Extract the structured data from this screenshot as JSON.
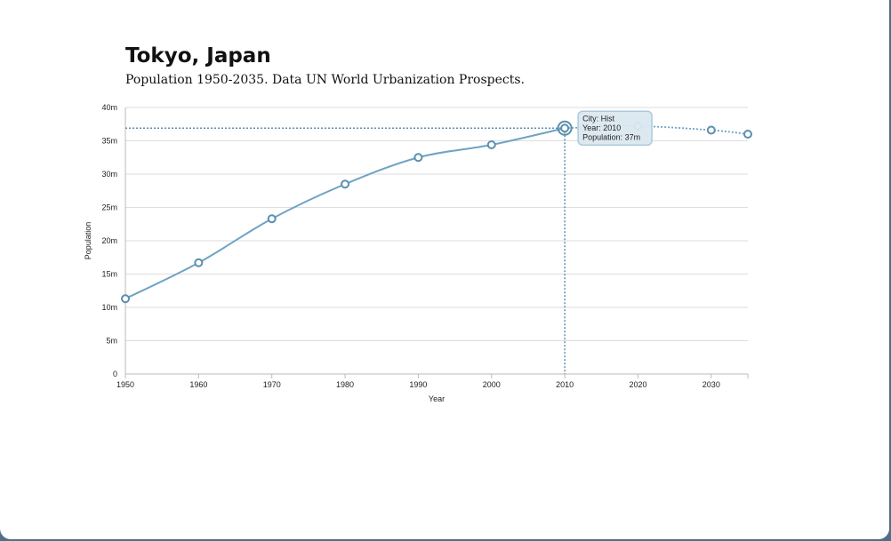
{
  "header": {
    "title": "Tokyo, Japan",
    "subtitle": "Population 1950-2035. Data UN World Urbanization Prospects."
  },
  "colors": {
    "line": "#6fa3c4",
    "marker": "#5b8fae",
    "grid": "#dddddd",
    "crosshair": "#5b8fae",
    "tooltip_fill": "#dce8f1",
    "tooltip_border": "#a9c8dc"
  },
  "tooltip": {
    "city_line": "City: Hist",
    "year_line": "Year: 2010",
    "population_line": "Population: 37m"
  },
  "chart_data": {
    "type": "line",
    "xlabel": "Year",
    "ylabel": "Population",
    "xlim": [
      1950,
      2035
    ],
    "ylim": [
      0,
      40
    ],
    "x_ticks": [
      "1950",
      "1960",
      "1970",
      "1980",
      "1990",
      "2000",
      "2010",
      "2020",
      "2030"
    ],
    "y_ticks": [
      "0",
      "5m",
      "10m",
      "15m",
      "20m",
      "25m",
      "30m",
      "35m",
      "40m"
    ],
    "grid": true,
    "legend": "none",
    "highlight": {
      "x": 2010,
      "y": 36.9
    },
    "series": [
      {
        "style": "solid",
        "x": [
          1950,
          1960,
          1970,
          1980,
          1990,
          2000,
          2010
        ],
        "values": [
          11.3,
          16.7,
          23.3,
          28.5,
          32.5,
          34.4,
          36.9
        ]
      },
      {
        "style": "dotted",
        "x": [
          2010,
          2020,
          2030,
          2035
        ],
        "values": [
          36.9,
          37.2,
          36.6,
          36.0
        ]
      }
    ]
  }
}
